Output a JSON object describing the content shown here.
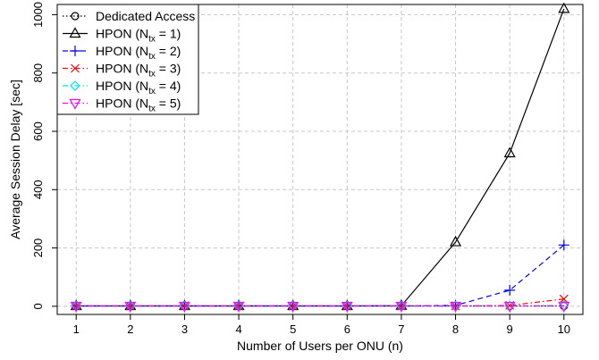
{
  "chart_data": {
    "type": "line",
    "title": "",
    "xlabel": "Number of Users per ONU (n)",
    "ylabel": "Average Session Delay [sec]",
    "x": [
      1,
      2,
      3,
      4,
      5,
      6,
      7,
      8,
      9,
      10
    ],
    "xlim": [
      0.65,
      10.35
    ],
    "ylim": [
      -28,
      1035
    ],
    "xticks": [
      1,
      2,
      3,
      4,
      5,
      6,
      7,
      8,
      9,
      10
    ],
    "yticks": [
      0,
      200,
      400,
      600,
      800,
      1000
    ],
    "grid": true,
    "legend_position": "top-left",
    "series": [
      {
        "name": "Dedicated Access",
        "sub": "",
        "suffix": "",
        "color": "#000000",
        "marker": "circle",
        "dash": "dotted",
        "values": [
          1,
          1,
          1,
          1,
          1,
          1,
          1,
          1,
          1,
          1
        ]
      },
      {
        "name": "HPON (N",
        "sub": "tx",
        "suffix": " = 1)",
        "color": "#000000",
        "marker": "triangle-up",
        "dash": "solid",
        "values": [
          1,
          1,
          1,
          1,
          1,
          1,
          2,
          220,
          525,
          1020
        ]
      },
      {
        "name": "HPON (N",
        "sub": "tx",
        "suffix": " = 2)",
        "color": "#0000ff",
        "marker": "plus",
        "dash": "dashed",
        "values": [
          1,
          1,
          1,
          1,
          1,
          1,
          1,
          3,
          55,
          210
        ]
      },
      {
        "name": "HPON (N",
        "sub": "tx",
        "suffix": " = 3)",
        "color": "#ff0000",
        "marker": "cross",
        "dash": "dashdot",
        "values": [
          1,
          1,
          1,
          1,
          1,
          1,
          1,
          1,
          3,
          25
        ]
      },
      {
        "name": "HPON (N",
        "sub": "tx",
        "suffix": " = 4)",
        "color": "#00e5e5",
        "marker": "diamond",
        "dash": "dashdot",
        "values": [
          1,
          1,
          1,
          1,
          1,
          1,
          1,
          1,
          1,
          3
        ]
      },
      {
        "name": "HPON (N",
        "sub": "tx",
        "suffix": " = 5)",
        "color": "#ff00ff",
        "marker": "triangle-down",
        "dash": "dashdot",
        "values": [
          1,
          1,
          1,
          1,
          1,
          1,
          1,
          1,
          1,
          1
        ]
      }
    ]
  }
}
